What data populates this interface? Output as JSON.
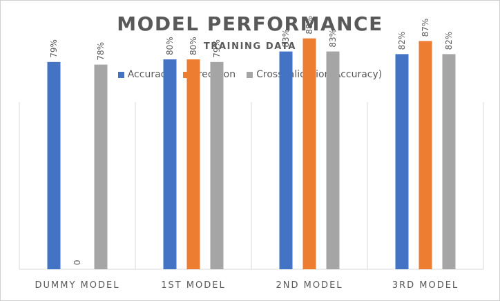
{
  "chart_data": {
    "type": "bar",
    "title": "MODEL PERFORMANCE",
    "subtitle": "TRAINING DATA",
    "categories": [
      "DUMMY MODEL",
      "1ST MODEL",
      "2ND MODEL",
      "3RD MODEL"
    ],
    "series": [
      {
        "name": "Accuracy",
        "color": "#4472C4",
        "values": [
          79,
          80,
          83,
          82
        ],
        "labels": [
          "79%",
          "80%",
          "83%",
          "82%"
        ]
      },
      {
        "name": "Precision",
        "color": "#ED7D31",
        "values": [
          0,
          80,
          88,
          87
        ],
        "labels": [
          "0",
          "80%",
          "88%",
          "87%"
        ]
      },
      {
        "name": "Crossvalidation(Accuracy)",
        "color": "#A5A5A5",
        "values": [
          78,
          79,
          83,
          82
        ],
        "labels": [
          "78%",
          "79%",
          "83%",
          "82%"
        ]
      }
    ],
    "ylim": [
      0,
      100
    ],
    "legend_position": "top",
    "grid": false,
    "category_dividers": true
  }
}
